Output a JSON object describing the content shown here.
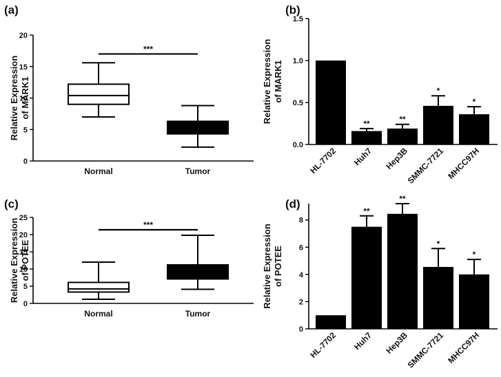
{
  "chart_data": [
    {
      "panel": "(a)",
      "type": "box",
      "ylabel_line1": "Relative Expression",
      "ylabel_line2": "of MARK1",
      "ylim": [
        0,
        20
      ],
      "yticks": [
        0,
        5,
        10,
        15,
        20
      ],
      "categories": [
        "Normal",
        "Tumor"
      ],
      "boxes": [
        {
          "name": "Normal",
          "min": 7.0,
          "q1": 9.0,
          "median": 10.4,
          "q3": 12.2,
          "max": 15.6,
          "fill": "#ffffff"
        },
        {
          "name": "Tumor",
          "min": 2.2,
          "q1": 4.3,
          "median": 5.5,
          "q3": 6.3,
          "max": 8.8,
          "fill": "#000000"
        }
      ],
      "significance": {
        "label": "***",
        "y": 17.0
      }
    },
    {
      "panel": "(b)",
      "type": "bar",
      "ylabel_line1": "Relative Expression",
      "ylabel_line2": "of MARK1",
      "ylim": [
        0,
        1.5
      ],
      "yticks": [
        "0.0",
        "0.5",
        "1.0",
        "1.5"
      ],
      "categories": [
        "HL-7702",
        "Huh7",
        "Hep3B",
        "SMMC-7721",
        "MHCC97H"
      ],
      "values": [
        1.0,
        0.16,
        0.19,
        0.46,
        0.36
      ],
      "errors": [
        0.0,
        0.03,
        0.05,
        0.12,
        0.09
      ],
      "labels": [
        "",
        "**",
        "**",
        "*",
        "*"
      ]
    },
    {
      "panel": "(c)",
      "type": "box",
      "ylabel_line1": "Relative Expression",
      "ylabel_line2": "of POTEE",
      "ylim": [
        0,
        25
      ],
      "yticks": [
        0,
        5,
        10,
        15,
        20,
        25
      ],
      "categories": [
        "Normal",
        "Tumor"
      ],
      "boxes": [
        {
          "name": "Normal",
          "min": 1.2,
          "q1": 3.3,
          "median": 4.2,
          "q3": 6.1,
          "max": 12.0,
          "fill": "#ffffff"
        },
        {
          "name": "Tumor",
          "min": 4.1,
          "q1": 7.1,
          "median": 9.5,
          "q3": 11.2,
          "max": 19.8,
          "fill": "#000000"
        }
      ],
      "significance": {
        "label": "***",
        "y": 21.4
      }
    },
    {
      "panel": "(d)",
      "type": "bar",
      "ylabel_line1": "Relative Expression",
      "ylabel_line2": "of POTEE",
      "ylim": [
        0,
        9.2
      ],
      "yticks": [
        0,
        2,
        4,
        6,
        8
      ],
      "categories": [
        "HL-7702",
        "Huh7",
        "Hep3B",
        "SMMC-7721",
        "MHCC97H"
      ],
      "values": [
        1.0,
        7.5,
        8.45,
        4.55,
        4.0
      ],
      "errors": [
        0.0,
        0.8,
        0.75,
        1.35,
        1.1
      ],
      "labels": [
        "",
        "**",
        "**",
        "*",
        "*"
      ]
    }
  ]
}
